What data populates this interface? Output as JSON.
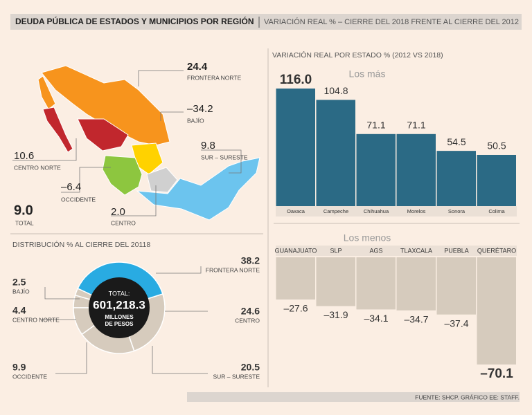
{
  "header": {
    "title": "DEUDA PÚBLICA DE ESTADOS Y MUNICIPIOS POR REGIÓN",
    "subtitle": "VARIACIÓN REAL % – CIERRE DEL 2018 FRENTE AL CIERRE DEL 2012"
  },
  "map": {
    "regions": [
      {
        "name": "FRONTERA NORTE",
        "value": "24.4"
      },
      {
        "name": "BAJÍO",
        "value": "–34.2"
      },
      {
        "name": "SUR – SURESTE",
        "value": "9.8"
      },
      {
        "name": "CENTRO NORTE",
        "value": "10.6"
      },
      {
        "name": "OCCIDENTE",
        "value": "–6.4"
      },
      {
        "name": "CENTRO",
        "value": "2.0"
      }
    ],
    "total": {
      "name": "TOTAL",
      "value": "9.0"
    }
  },
  "chart_data": [
    {
      "type": "donut",
      "title": "DISTRIBUCIÓN % AL CIERRE DEL 20118",
      "categories": [
        "FRONTERA NORTE",
        "CENTRO",
        "SUR – SURESTE",
        "OCCIDENTE",
        "CENTRO NORTE",
        "BAJÍO"
      ],
      "values": [
        38.2,
        24.6,
        20.5,
        9.9,
        4.4,
        2.5
      ],
      "colors": [
        "#29abe2",
        "#d6cbbd",
        "#d6cbbd",
        "#d6cbbd",
        "#d6cbbd",
        "#d6cbbd"
      ],
      "center_label": [
        "TOTAL:",
        "601,218.3",
        "MILLONES",
        "DE PESOS"
      ]
    },
    {
      "type": "bar",
      "title": "VARIACIÓN REAL POR ESTADO % (2012 VS 2018)",
      "subtitle": "Los más",
      "categories": [
        "Oaxaca",
        "Campeche",
        "Chihuahua",
        "Morelos",
        "Sonora",
        "Colima"
      ],
      "values": [
        116.0,
        104.8,
        71.1,
        71.1,
        54.5,
        50.5
      ],
      "value_labels": [
        "116.0",
        "104.8",
        "71.1",
        "71.1",
        "54.5",
        "50.5"
      ],
      "color": "#2b6a85"
    },
    {
      "type": "bar",
      "subtitle": "Los menos",
      "categories": [
        "GUANAJUATO",
        "SLP",
        "AGS",
        "TLAXCALA",
        "PUEBLA",
        "QUERÉTARO"
      ],
      "values": [
        -27.6,
        -31.9,
        -34.1,
        -34.7,
        -37.4,
        -70.1
      ],
      "value_labels": [
        "–27.6",
        "–31.9",
        "–34.1",
        "–34.7",
        "–37.4",
        "–70.1"
      ],
      "color": "#d6cbbd"
    }
  ],
  "footer": "FUENTE: SHCP. GRÁFICO EE: STAFF."
}
